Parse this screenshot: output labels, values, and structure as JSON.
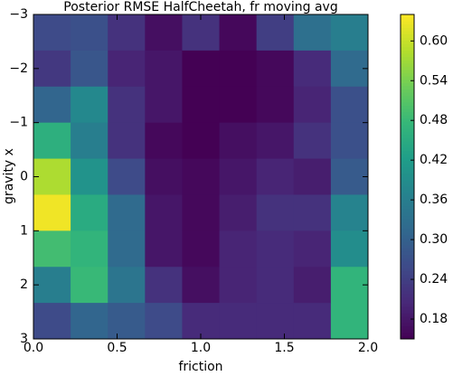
{
  "chart_data": {
    "type": "heatmap",
    "title": "Posterior RMSE HalfCheetah, fr moving avg",
    "x_label": "friction",
    "y_label": "gravity x",
    "colormap": "viridis",
    "xlim": [
      0,
      2
    ],
    "ylim": [
      3,
      -3
    ],
    "xticks": [
      {
        "value": 0,
        "label": "0.0"
      },
      0.5,
      {
        "value": 1,
        "label": "1.0"
      },
      1.5,
      {
        "value": 2,
        "label": "2.0"
      }
    ],
    "yticks": [
      {
        "value": -3,
        "label": "−3"
      },
      {
        "value": -2,
        "label": "−2"
      },
      {
        "value": -1,
        "label": "−1"
      },
      0,
      1,
      2,
      3
    ],
    "clim": [
      0.15,
      0.64
    ],
    "cticks": [
      0.18,
      0.24,
      {
        "value": 0.3,
        "label": "0.30"
      },
      0.36,
      0.42,
      0.48,
      0.54,
      {
        "value": 0.6,
        "label": "0.60"
      }
    ],
    "z": [
      [
        0.26,
        0.27,
        0.22,
        0.17,
        0.22,
        0.16,
        0.24,
        0.33,
        0.36
      ],
      [
        0.23,
        0.28,
        0.2,
        0.18,
        0.15,
        0.15,
        0.16,
        0.21,
        0.32
      ],
      [
        0.31,
        0.38,
        0.22,
        0.18,
        0.15,
        0.15,
        0.16,
        0.2,
        0.27
      ],
      [
        0.46,
        0.36,
        0.22,
        0.16,
        0.15,
        0.17,
        0.18,
        0.22,
        0.27
      ],
      [
        0.58,
        0.4,
        0.26,
        0.17,
        0.16,
        0.18,
        0.2,
        0.19,
        0.29
      ],
      [
        0.63,
        0.45,
        0.32,
        0.18,
        0.16,
        0.19,
        0.22,
        0.22,
        0.37
      ],
      [
        0.49,
        0.47,
        0.32,
        0.18,
        0.16,
        0.2,
        0.21,
        0.2,
        0.39
      ],
      [
        0.36,
        0.48,
        0.34,
        0.22,
        0.17,
        0.2,
        0.21,
        0.19,
        0.47
      ],
      [
        0.26,
        0.31,
        0.29,
        0.26,
        0.21,
        0.21,
        0.21,
        0.21,
        0.47
      ]
    ]
  }
}
